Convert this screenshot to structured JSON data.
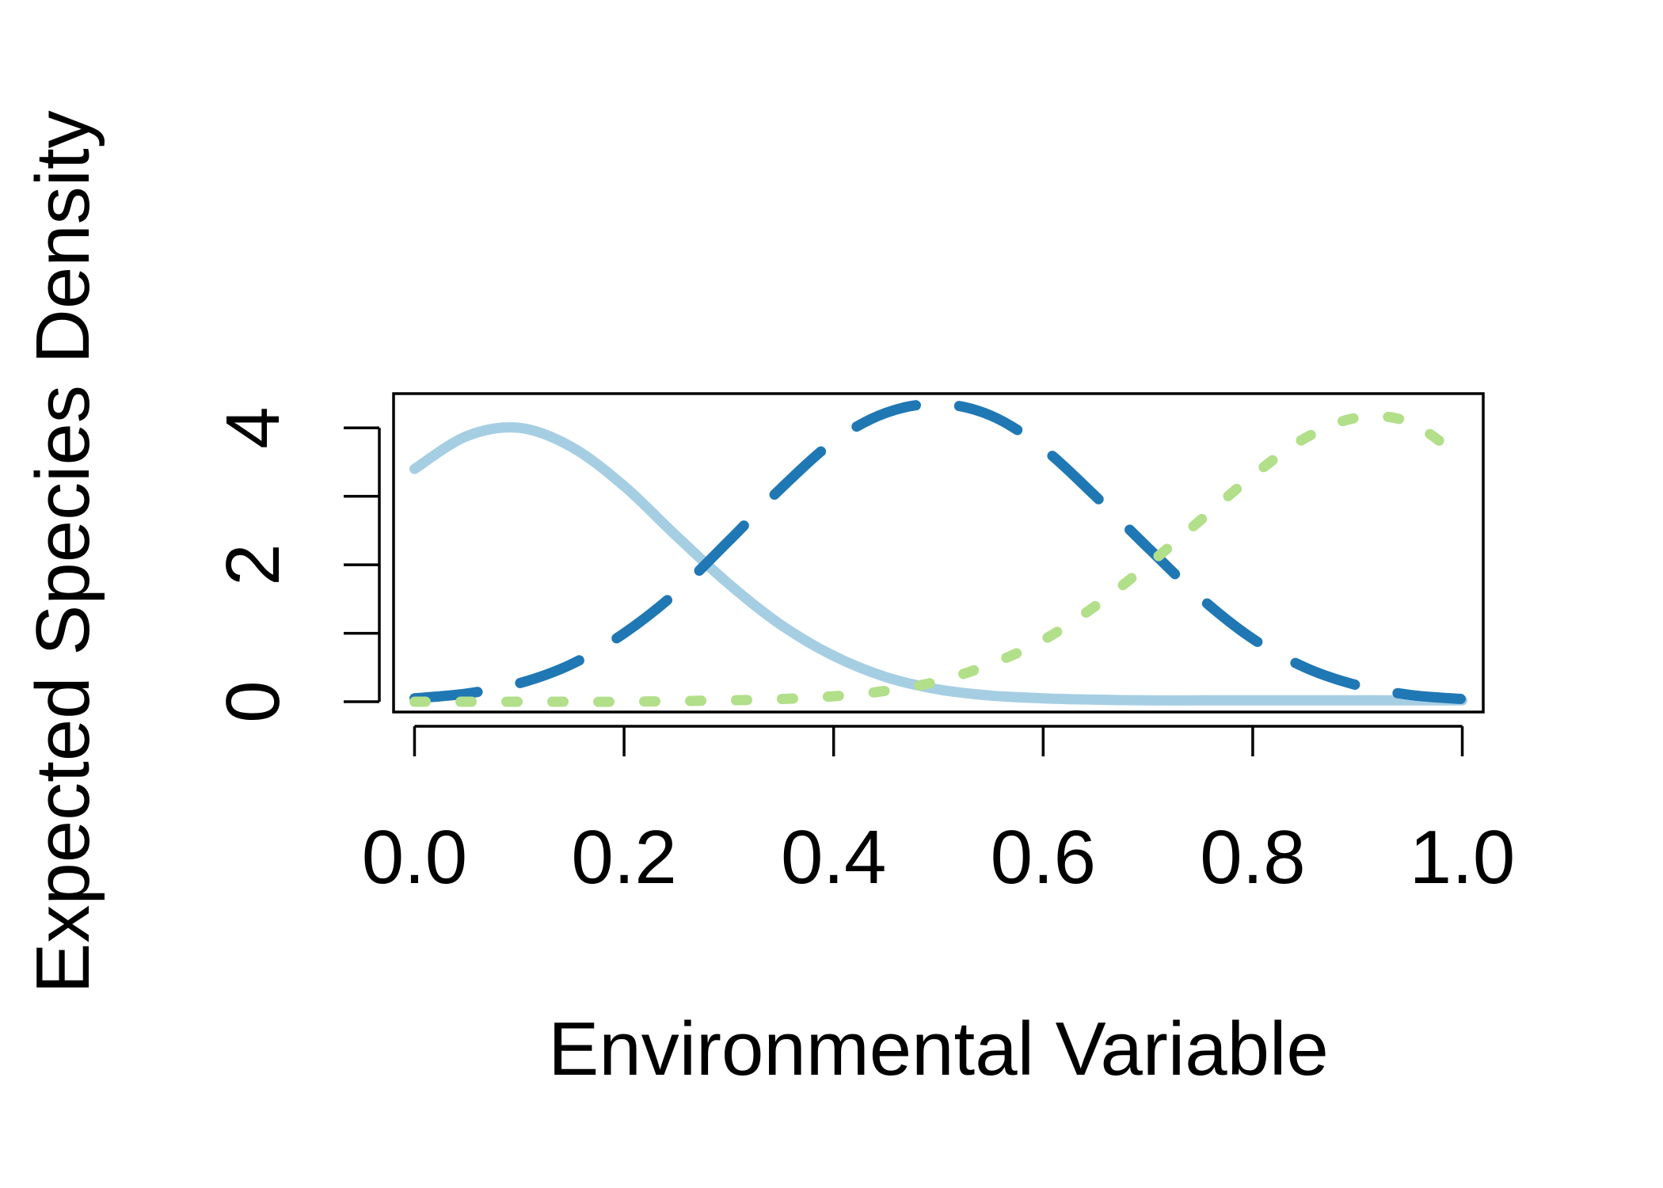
{
  "chart_data": {
    "type": "line",
    "title": "",
    "xlabel": "Environmental Variable",
    "ylabel": "Expected Species Density",
    "xlim": [
      -0.02,
      1.02
    ],
    "ylim": [
      -0.15,
      4.5
    ],
    "x_ticks": [
      0.0,
      0.2,
      0.4,
      0.6,
      0.8,
      1.0
    ],
    "x_tick_labels": [
      "0.0",
      "0.2",
      "0.4",
      "0.6",
      "0.8",
      "1.0"
    ],
    "y_ticks": [
      0,
      1,
      2,
      3,
      4
    ],
    "y_tick_labels": [
      "0",
      "",
      "2",
      "",
      "4"
    ],
    "grid": false,
    "legend": "none",
    "x": [
      0.0,
      0.05,
      0.1,
      0.15,
      0.2,
      0.25,
      0.3,
      0.35,
      0.4,
      0.45,
      0.5,
      0.55,
      0.6,
      0.65,
      0.7,
      0.75,
      0.8,
      0.85,
      0.9,
      0.95,
      1.0
    ],
    "series": [
      {
        "color": "#a6cee3",
        "dash": "solid",
        "values": [
          3.4,
          3.88,
          4.0,
          3.72,
          3.15,
          2.42,
          1.72,
          1.12,
          0.67,
          0.36,
          0.18,
          0.09,
          0.05,
          0.03,
          0.02,
          0.02,
          0.02,
          0.02,
          0.02,
          0.02,
          0.02
        ]
      },
      {
        "color": "#1f78b4",
        "dash": "dashed",
        "values": [
          0.05,
          0.12,
          0.27,
          0.55,
          1.0,
          1.6,
          2.35,
          3.12,
          3.8,
          4.22,
          4.35,
          4.18,
          3.7,
          3.0,
          2.25,
          1.52,
          0.92,
          0.5,
          0.24,
          0.1,
          0.04
        ]
      },
      {
        "color": "#b2df8a",
        "dash": "dotted",
        "values": [
          0.0,
          0.0,
          0.0,
          0.0,
          0.0,
          0.01,
          0.02,
          0.04,
          0.08,
          0.16,
          0.3,
          0.55,
          0.9,
          1.4,
          2.0,
          2.65,
          3.3,
          3.85,
          4.15,
          4.08,
          3.55
        ]
      }
    ]
  }
}
